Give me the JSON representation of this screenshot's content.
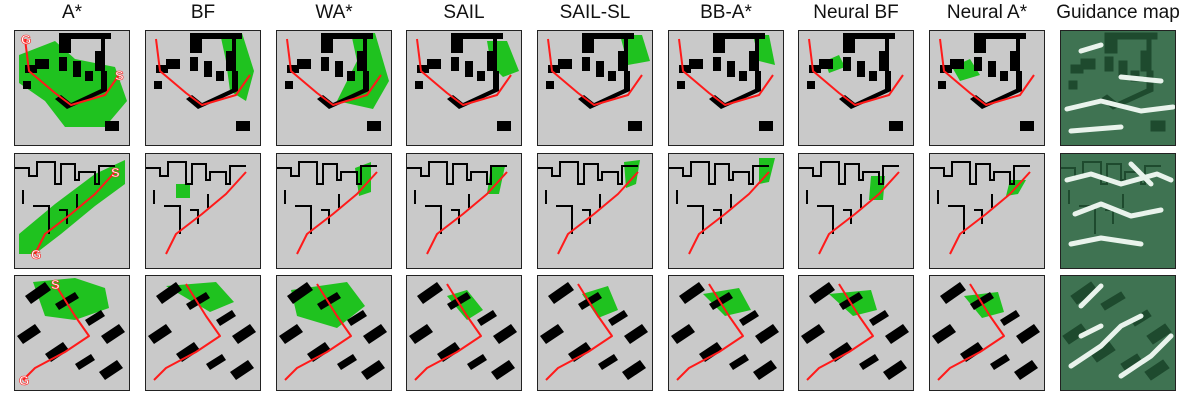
{
  "columns": [
    "A*",
    "BF",
    "WA*",
    "SAIL",
    "SAIL-SL",
    "BB-A*",
    "Neural BF",
    "Neural A*",
    "Guidance map"
  ],
  "markers": {
    "start": "S",
    "goal": "G"
  },
  "colors": {
    "free": "#c9c9c9",
    "obstacle": "#000000",
    "explored": "#1fc21f",
    "path": "#ff1a1a",
    "guide_dark": "#1e4a2e",
    "guide_mid": "#3f7352",
    "guide_light": "#e9f3ec"
  }
}
